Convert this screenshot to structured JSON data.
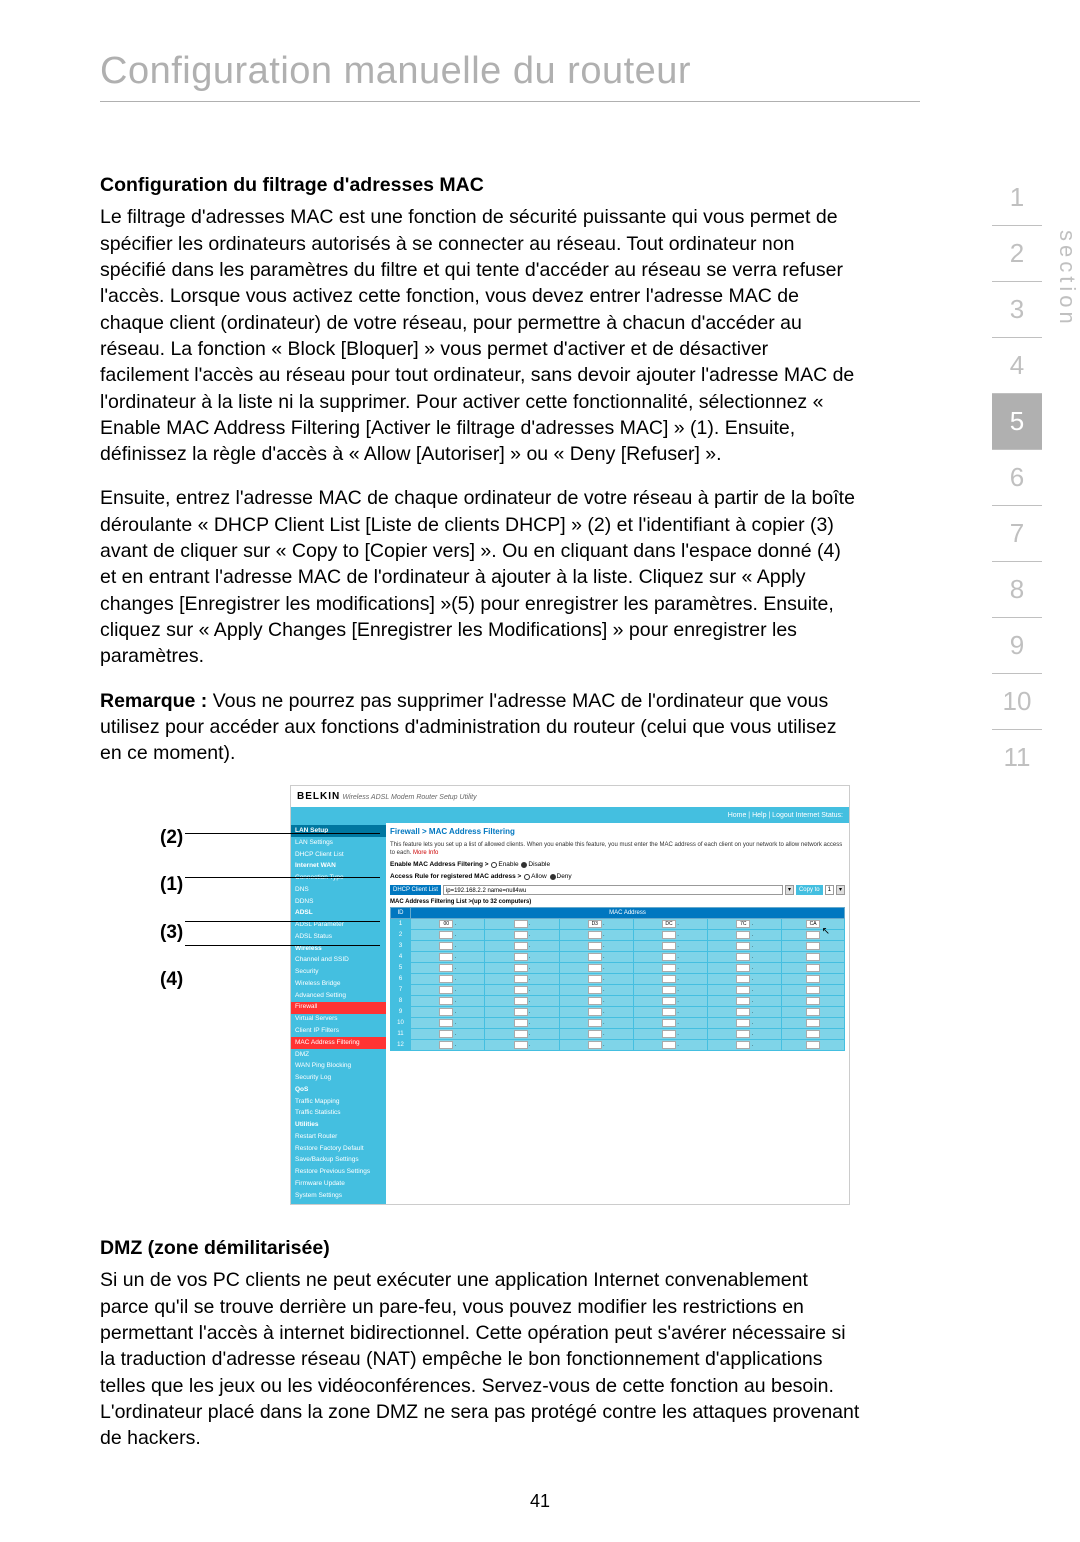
{
  "page": {
    "main_title": "Configuration manuelle du routeur",
    "page_number": "41",
    "section_label": "section"
  },
  "nav": {
    "items": [
      "1",
      "2",
      "3",
      "4",
      "5",
      "6",
      "7",
      "8",
      "9",
      "10",
      "11"
    ],
    "active_index": 4,
    "text_color": "#c0c0c0",
    "active_bg": "#b0b0b0",
    "active_fg": "#ffffff"
  },
  "headings": {
    "mac": "Configuration du filtrage d'adresses MAC",
    "dmz": "DMZ (zone démilitarisée)"
  },
  "paragraphs": {
    "p1": "Le filtrage d'adresses MAC est une fonction de sécurité puissante qui vous permet de spécifier les ordinateurs autorisés à se connecter au réseau. Tout ordinateur non spécifié dans les paramètres du filtre et qui tente d'accéder au réseau se verra refuser l'accès. Lorsque vous activez cette fonction, vous devez entrer l'adresse MAC de chaque client (ordinateur) de votre réseau, pour permettre à chacun d'accéder au réseau. La fonction « Block [Bloquer] » vous permet d'activer et de désactiver facilement l'accès au réseau pour tout ordinateur, sans devoir ajouter l'adresse MAC de l'ordinateur à la liste ni la supprimer. Pour activer cette fonctionnalité, sélectionnez « Enable MAC Address Filtering [Activer le filtrage d'adresses MAC] » (1). Ensuite, définissez la règle d'accès à « Allow [Autoriser] » ou « Deny [Refuser] ».",
    "p2": "Ensuite, entrez l'adresse MAC de chaque ordinateur de votre réseau à partir de la boîte déroulante « DHCP Client List [Liste de clients DHCP] » (2) et l'identifiant à copier (3) avant de cliquer sur « Copy to [Copier vers] ». Ou en cliquant dans l'espace donné (4) et en entrant l'adresse MAC de l'ordinateur à ajouter à la liste. Cliquez sur « Apply changes [Enregistrer les modifications] »(5) pour enregistrer les paramètres. Ensuite, cliquez sur « Apply Changes [Enregistrer les Modifications] » pour enregistrer les paramètres.",
    "p3_label": "Remarque :",
    "p3_rest": " Vous ne pourrez pas supprimer l'adresse MAC de l'ordinateur que vous utilisez pour accéder aux fonctions d'administration du routeur (celui que vous utilisez en ce moment).",
    "p4": "Si un de vos PC clients ne peut exécuter une application Internet convenablement parce qu'il se trouve derrière un pare-feu, vous pouvez modifier les restrictions en permettant l'accès à internet bidirectionnel. Cette opération peut s'avérer nécessaire si la traduction d'adresse réseau (NAT) empêche le bon fonctionnement d'applications telles que les jeux ou les vidéoconférences. Servez-vous de cette fonction au besoin. L'ordinateur placé dans la zone DMZ ne sera pas protégé contre les attaques provenant de hackers."
  },
  "callouts": {
    "c2": "(2)",
    "c1": "(1)",
    "c3": "(3)",
    "c4": "(4)"
  },
  "router": {
    "logo": "BELKIN",
    "tagline": "Wireless ADSL Modem Router Setup Utility",
    "topbar": "Home | Help | Logout   Internet Status:",
    "sidebar": {
      "groups": [
        {
          "head": "LAN Setup",
          "items": [
            {
              "t": "LAN Settings"
            },
            {
              "t": "DHCP Client List"
            },
            {
              "t": "Internet WAN",
              "bold": true
            }
          ]
        },
        {
          "head": null,
          "items": [
            {
              "t": "Connection Type"
            },
            {
              "t": "DNS"
            },
            {
              "t": "DDNS"
            },
            {
              "t": "ADSL",
              "bold": true
            }
          ]
        },
        {
          "head": null,
          "items": [
            {
              "t": "ADSL Parameter"
            },
            {
              "t": "ADSL Status"
            },
            {
              "t": "Wireless",
              "bold": true
            }
          ]
        },
        {
          "head": null,
          "items": [
            {
              "t": "Channel and SSID"
            },
            {
              "t": "Security"
            },
            {
              "t": "Wireless Bridge"
            },
            {
              "t": "Advanced Setting"
            },
            {
              "t": "Firewall",
              "hl": true
            }
          ]
        },
        {
          "head": null,
          "items": [
            {
              "t": "Virtual Servers"
            },
            {
              "t": "Client IP Filters"
            },
            {
              "t": "MAC Address Filtering",
              "hl": true
            },
            {
              "t": "DMZ"
            },
            {
              "t": "WAN Ping Blocking"
            },
            {
              "t": "Security Log"
            },
            {
              "t": "QoS",
              "bold": true
            }
          ]
        },
        {
          "head": null,
          "items": [
            {
              "t": "Traffic Mapping"
            },
            {
              "t": "Traffic Statistics"
            },
            {
              "t": "Utilities",
              "bold": true
            }
          ]
        },
        {
          "head": null,
          "items": [
            {
              "t": "Restart Router"
            },
            {
              "t": "Restore Factory Default"
            },
            {
              "t": "Save/Backup Settings"
            },
            {
              "t": "Restore Previous Settings"
            },
            {
              "t": "Firmware Update"
            },
            {
              "t": "System Settings"
            }
          ]
        }
      ]
    },
    "main": {
      "title": "Firewall > MAC Address Filtering",
      "desc": "This feature lets you set up a list of allowed clients. When you enable this feature, you must enter the MAC address of each client on your network to allow network access to each.",
      "more": "More Info",
      "enable_label": "Enable MAC Address Filtering >",
      "enable_opt1": "Enable",
      "enable_opt2": "Disable",
      "rule_label": "Access Rule for registered MAC address >",
      "rule_opt1": "Allow",
      "rule_opt2": "Deny",
      "dhcp_btn": "DHCP Client List",
      "dhcp_value": "ip=192.168.2.2 name=null4wu",
      "copy_btn": "Copy to",
      "copy_num": "1",
      "list_label": "MAC Address Filtering List >(up to 32 computers)",
      "table": {
        "head_id": "ID",
        "head_mac": "MAC Address",
        "row1": [
          "00",
          "",
          "D3",
          "DC",
          "7C",
          "CA"
        ],
        "ids": [
          "1",
          "2",
          "3",
          "4",
          "5",
          "6",
          "7",
          "8",
          "9",
          "10",
          "11",
          "12"
        ]
      }
    },
    "colors": {
      "primary": "#44bfe0",
      "dark": "#0077c0",
      "sidebar_head": "#0077a0",
      "highlight": "#ff3333",
      "cell": "#7fd4e8"
    }
  }
}
